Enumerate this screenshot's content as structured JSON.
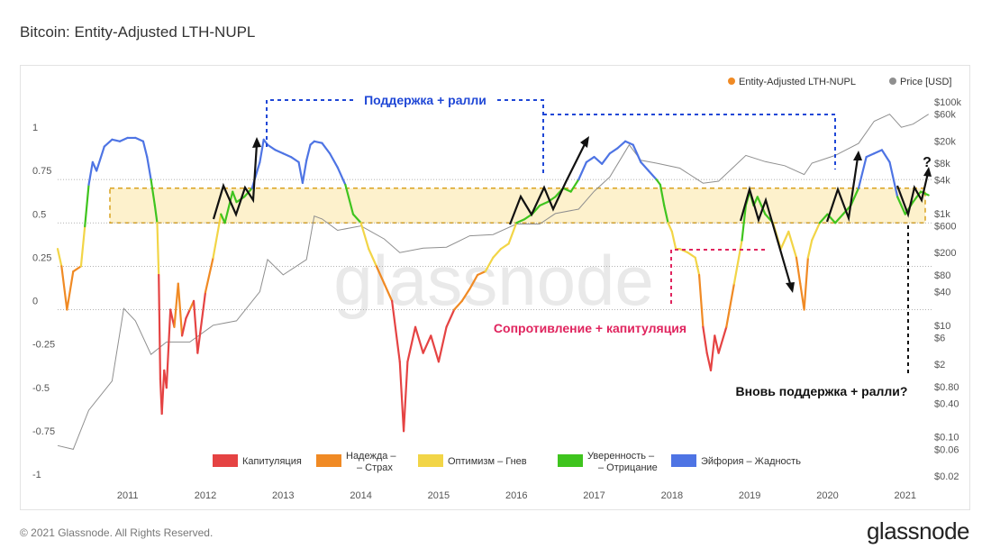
{
  "title": "Bitcoin: Entity-Adjusted LTH-NUPL",
  "footer": "© 2021 Glassnode. All Rights Reserved.",
  "brand": "glassnode",
  "watermark": "glassnode",
  "colors": {
    "capitulation": "#e54343",
    "hope_fear": "#f08a24",
    "optimism_anxiety": "#f2d547",
    "belief_denial": "#3fc41e",
    "euphoria_greed": "#4e74e4",
    "price": "#8f8f8f",
    "band_fill": "#fdf1cc",
    "band_stroke": "#d9a21f",
    "blue_annotation": "#1f47d6",
    "pink_annotation": "#e0245e"
  },
  "chart_data": {
    "type": "line",
    "title": "Bitcoin: Entity-Adjusted LTH-NUPL",
    "x_ticks": [
      "2011",
      "2012",
      "2013",
      "2014",
      "2015",
      "2016",
      "2017",
      "2018",
      "2019",
      "2020",
      "2021"
    ],
    "y_left_ticks": [
      "1",
      "0.75",
      "0.5",
      "0.25",
      "0",
      "-0.25",
      "-0.5",
      "-0.75",
      "-1"
    ],
    "y_left_range": [
      -1,
      1
    ],
    "y_right_ticks": [
      "$100k",
      "$60k",
      "$20k",
      "$8k",
      "$4k",
      "$1k",
      "$600",
      "$200",
      "$80",
      "$40",
      "$10",
      "$6",
      "$2",
      "$0.80",
      "$0.40",
      "$0.10",
      "$0.06",
      "$0.02"
    ],
    "y_right_scale": "log",
    "legend_top": [
      "Entity-Adjusted LTH-NUPL",
      "Price [USD]"
    ],
    "legend_bottom": [
      {
        "label_1": "Капитуляция",
        "label_2": "",
        "color": "#e54343"
      },
      {
        "label_1": "Надежда –",
        "label_2": "– Страх",
        "color": "#f08a24"
      },
      {
        "label_1": "Оптимизм – Гнев",
        "label_2": "",
        "color": "#f2d547"
      },
      {
        "label_1": "Уверенность –",
        "label_2": "– Отрицание",
        "color": "#3fc41e"
      },
      {
        "label_1": "Эйфория – Жадность",
        "label_2": "",
        "color": "#4e74e4"
      }
    ],
    "band_range": [
      0.5,
      0.7
    ],
    "reference_lines": [
      0.75,
      0.5,
      0.25,
      0
    ],
    "annotations": {
      "support_rally": "Поддержка + ралли",
      "resistance_capitulation": "Сопротивление + капитуляция",
      "support_rally_again": "Вновь поддержка + ралли?",
      "question": "?"
    },
    "nupl_series": [
      [
        2010.6,
        0.35
      ],
      [
        2010.65,
        0.25
      ],
      [
        2010.72,
        0.0
      ],
      [
        2010.8,
        0.22
      ],
      [
        2010.9,
        0.25
      ],
      [
        2010.95,
        0.48
      ],
      [
        2011.0,
        0.72
      ],
      [
        2011.05,
        0.85
      ],
      [
        2011.1,
        0.8
      ],
      [
        2011.2,
        0.94
      ],
      [
        2011.3,
        0.98
      ],
      [
        2011.4,
        0.97
      ],
      [
        2011.5,
        0.99
      ],
      [
        2011.6,
        0.99
      ],
      [
        2011.7,
        0.97
      ],
      [
        2011.75,
        0.88
      ],
      [
        2011.8,
        0.75
      ],
      [
        2011.85,
        0.6
      ],
      [
        2011.88,
        0.5
      ],
      [
        2011.9,
        0.2
      ],
      [
        2011.92,
        -0.4
      ],
      [
        2011.94,
        -0.6
      ],
      [
        2011.97,
        -0.35
      ],
      [
        2012.0,
        -0.45
      ],
      [
        2012.05,
        0.0
      ],
      [
        2012.1,
        -0.1
      ],
      [
        2012.15,
        0.15
      ],
      [
        2012.2,
        -0.15
      ],
      [
        2012.25,
        -0.05
      ],
      [
        2012.3,
        0.0
      ],
      [
        2012.35,
        0.05
      ],
      [
        2012.4,
        -0.25
      ],
      [
        2012.5,
        0.1
      ],
      [
        2012.6,
        0.3
      ],
      [
        2012.7,
        0.55
      ],
      [
        2012.75,
        0.5
      ],
      [
        2012.85,
        0.68
      ],
      [
        2012.9,
        0.62
      ],
      [
        2013.0,
        0.65
      ],
      [
        2013.1,
        0.7
      ],
      [
        2013.2,
        0.85
      ],
      [
        2013.25,
        0.98
      ],
      [
        2013.3,
        0.95
      ],
      [
        2013.4,
        0.92
      ],
      [
        2013.5,
        0.9
      ],
      [
        2013.6,
        0.88
      ],
      [
        2013.7,
        0.85
      ],
      [
        2013.75,
        0.73
      ],
      [
        2013.8,
        0.86
      ],
      [
        2013.85,
        0.95
      ],
      [
        2013.9,
        0.97
      ],
      [
        2014.0,
        0.96
      ],
      [
        2014.1,
        0.9
      ],
      [
        2014.2,
        0.82
      ],
      [
        2014.3,
        0.72
      ],
      [
        2014.4,
        0.55
      ],
      [
        2014.5,
        0.5
      ],
      [
        2014.6,
        0.35
      ],
      [
        2014.7,
        0.25
      ],
      [
        2014.8,
        0.15
      ],
      [
        2014.9,
        0.05
      ],
      [
        2015.0,
        -0.3
      ],
      [
        2015.05,
        -0.7
      ],
      [
        2015.1,
        -0.3
      ],
      [
        2015.2,
        -0.1
      ],
      [
        2015.3,
        -0.25
      ],
      [
        2015.4,
        -0.15
      ],
      [
        2015.5,
        -0.3
      ],
      [
        2015.6,
        -0.1
      ],
      [
        2015.7,
        0.0
      ],
      [
        2015.8,
        0.05
      ],
      [
        2015.9,
        0.12
      ],
      [
        2016.0,
        0.2
      ],
      [
        2016.1,
        0.22
      ],
      [
        2016.2,
        0.3
      ],
      [
        2016.3,
        0.35
      ],
      [
        2016.4,
        0.38
      ],
      [
        2016.5,
        0.5
      ],
      [
        2016.6,
        0.52
      ],
      [
        2016.7,
        0.55
      ],
      [
        2016.8,
        0.6
      ],
      [
        2016.9,
        0.62
      ],
      [
        2017.0,
        0.65
      ],
      [
        2017.1,
        0.7
      ],
      [
        2017.2,
        0.68
      ],
      [
        2017.3,
        0.75
      ],
      [
        2017.4,
        0.85
      ],
      [
        2017.5,
        0.88
      ],
      [
        2017.6,
        0.84
      ],
      [
        2017.7,
        0.9
      ],
      [
        2017.8,
        0.93
      ],
      [
        2017.9,
        0.97
      ],
      [
        2018.0,
        0.95
      ],
      [
        2018.1,
        0.85
      ],
      [
        2018.2,
        0.8
      ],
      [
        2018.3,
        0.75
      ],
      [
        2018.35,
        0.72
      ],
      [
        2018.4,
        0.6
      ],
      [
        2018.45,
        0.5
      ],
      [
        2018.5,
        0.45
      ],
      [
        2018.55,
        0.35
      ],
      [
        2018.6,
        0.35
      ],
      [
        2018.7,
        0.33
      ],
      [
        2018.8,
        0.3
      ],
      [
        2018.85,
        0.2
      ],
      [
        2018.9,
        -0.1
      ],
      [
        2018.95,
        -0.25
      ],
      [
        2019.0,
        -0.35
      ],
      [
        2019.05,
        -0.15
      ],
      [
        2019.1,
        -0.25
      ],
      [
        2019.2,
        -0.1
      ],
      [
        2019.3,
        0.15
      ],
      [
        2019.4,
        0.4
      ],
      [
        2019.45,
        0.6
      ],
      [
        2019.5,
        0.68
      ],
      [
        2019.55,
        0.6
      ],
      [
        2019.6,
        0.65
      ],
      [
        2019.7,
        0.55
      ],
      [
        2019.8,
        0.5
      ],
      [
        2019.9,
        0.35
      ],
      [
        2020.0,
        0.45
      ],
      [
        2020.1,
        0.3
      ],
      [
        2020.15,
        0.15
      ],
      [
        2020.2,
        0.0
      ],
      [
        2020.25,
        0.3
      ],
      [
        2020.3,
        0.4
      ],
      [
        2020.4,
        0.5
      ],
      [
        2020.5,
        0.55
      ],
      [
        2020.6,
        0.5
      ],
      [
        2020.7,
        0.55
      ],
      [
        2020.8,
        0.6
      ],
      [
        2020.9,
        0.7
      ],
      [
        2021.0,
        0.88
      ],
      [
        2021.1,
        0.9
      ],
      [
        2021.2,
        0.92
      ],
      [
        2021.3,
        0.85
      ],
      [
        2021.4,
        0.65
      ],
      [
        2021.5,
        0.55
      ],
      [
        2021.6,
        0.62
      ],
      [
        2021.7,
        0.68
      ],
      [
        2021.8,
        0.66
      ]
    ],
    "price_series": [
      [
        2010.6,
        0.07
      ],
      [
        2010.8,
        0.06
      ],
      [
        2011.0,
        0.3
      ],
      [
        2011.3,
        1.0
      ],
      [
        2011.45,
        20
      ],
      [
        2011.6,
        12
      ],
      [
        2011.8,
        3
      ],
      [
        2012.0,
        5
      ],
      [
        2012.3,
        5
      ],
      [
        2012.6,
        10
      ],
      [
        2012.9,
        12
      ],
      [
        2013.2,
        40
      ],
      [
        2013.3,
        150
      ],
      [
        2013.5,
        80
      ],
      [
        2013.8,
        150
      ],
      [
        2013.9,
        900
      ],
      [
        2014.0,
        800
      ],
      [
        2014.2,
        500
      ],
      [
        2014.5,
        600
      ],
      [
        2014.8,
        350
      ],
      [
        2015.0,
        200
      ],
      [
        2015.3,
        240
      ],
      [
        2015.6,
        250
      ],
      [
        2015.9,
        400
      ],
      [
        2016.2,
        420
      ],
      [
        2016.5,
        650
      ],
      [
        2016.8,
        650
      ],
      [
        2017.0,
        1000
      ],
      [
        2017.3,
        1200
      ],
      [
        2017.5,
        2500
      ],
      [
        2017.7,
        4500
      ],
      [
        2017.95,
        17000
      ],
      [
        2018.1,
        9000
      ],
      [
        2018.3,
        8000
      ],
      [
        2018.6,
        6500
      ],
      [
        2018.9,
        3500
      ],
      [
        2019.1,
        3800
      ],
      [
        2019.45,
        11000
      ],
      [
        2019.7,
        8500
      ],
      [
        2019.95,
        7200
      ],
      [
        2020.2,
        5000
      ],
      [
        2020.3,
        8000
      ],
      [
        2020.6,
        11000
      ],
      [
        2020.9,
        18000
      ],
      [
        2021.1,
        45000
      ],
      [
        2021.3,
        60000
      ],
      [
        2021.45,
        35000
      ],
      [
        2021.6,
        40000
      ],
      [
        2021.8,
        60000
      ]
    ]
  }
}
